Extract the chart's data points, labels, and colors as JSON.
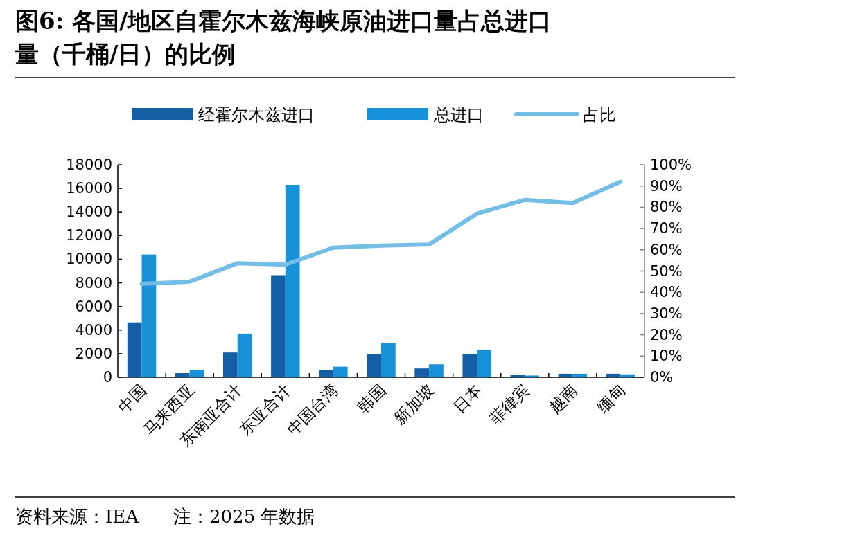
{
  "chart_data": {
    "type": "bar",
    "title": "图6:  各国/地区自霍尔木兹海峡原油进口量占总进口量（千桶/日）的比例",
    "categories": [
      "中国",
      "马来西亚",
      "东南亚合计",
      "东亚合计",
      "中国台湾",
      "韩国",
      "新加坡",
      "日本",
      "菲律宾",
      "越南",
      "缅甸"
    ],
    "series": [
      {
        "name": "经霍尔木兹进口",
        "color": "#1560a4",
        "values": [
          4650,
          350,
          2100,
          8650,
          600,
          1950,
          750,
          1950,
          200,
          300,
          300
        ]
      },
      {
        "name": "总进口",
        "color": "#1791d7",
        "values": [
          10400,
          650,
          3700,
          16300,
          900,
          2900,
          1100,
          2350,
          150,
          300,
          250
        ]
      },
      {
        "name": "占比",
        "type": "line",
        "axis": "y2",
        "color": "#74bde6",
        "values": [
          44,
          45,
          53.7,
          53,
          61,
          62,
          62.5,
          77,
          83.5,
          82,
          92
        ]
      }
    ],
    "ylim": [
      0,
      18000
    ],
    "yticks": [
      0,
      2000,
      4000,
      6000,
      8000,
      10000,
      12000,
      14000,
      16000,
      18000
    ],
    "y2lim": [
      0,
      100
    ],
    "y2ticks": [
      {
        "value": 0,
        "label": "0%"
      },
      {
        "value": 10,
        "label": "10%"
      },
      {
        "value": 20,
        "label": "20%"
      },
      {
        "value": 30,
        "label": "30%"
      },
      {
        "value": 40,
        "label": "40%"
      },
      {
        "value": 50,
        "label": "50%"
      },
      {
        "value": 60,
        "label": "60%"
      },
      {
        "value": 70,
        "label": "70%"
      },
      {
        "value": 80,
        "label": "80%"
      },
      {
        "value": 90,
        "label": "90%"
      },
      {
        "value": 100,
        "label": "100%"
      }
    ],
    "legend": "top",
    "marker": "none",
    "annotations": [
      "资料来源：IEA",
      "注：2025 年数据"
    ]
  }
}
